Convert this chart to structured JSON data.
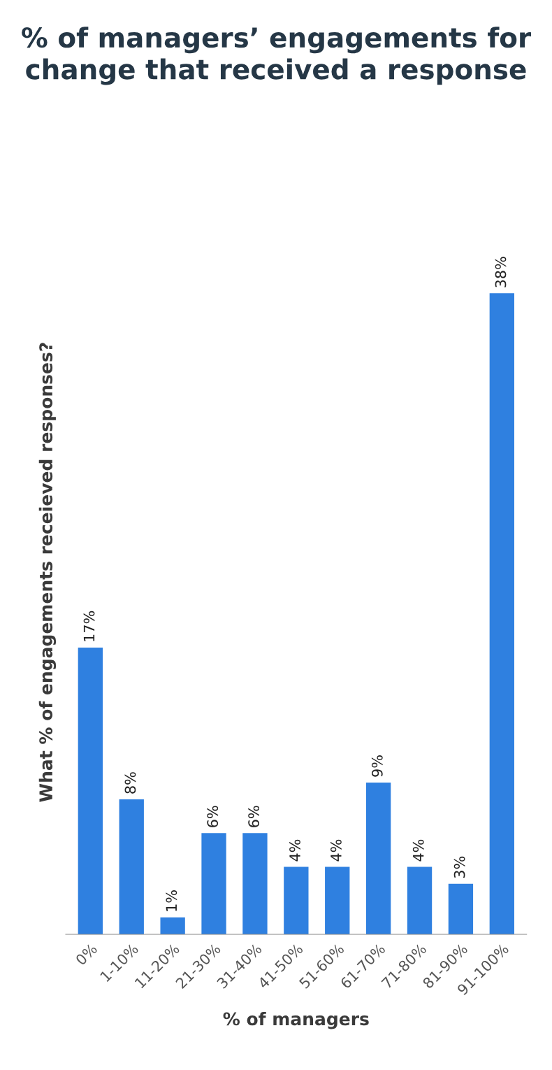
{
  "chart_data": {
    "type": "bar",
    "title": "% of managers’ engagements for change that received a response",
    "xlabel": "% of managers",
    "ylabel": "What % of engagements receieved responses?",
    "categories": [
      "0%",
      "1-10%",
      "11-20%",
      "21-30%",
      "31-40%",
      "41-50%",
      "51-60%",
      "61-70%",
      "71-80%",
      "81-90%",
      "91-100%"
    ],
    "values": [
      17,
      8,
      1,
      6,
      6,
      4,
      4,
      9,
      4,
      3,
      38
    ],
    "value_labels": [
      "17%",
      "8%",
      "1%",
      "6%",
      "6%",
      "4%",
      "4%",
      "9%",
      "4%",
      "3%",
      "38%"
    ],
    "color": "#2f80e0"
  }
}
